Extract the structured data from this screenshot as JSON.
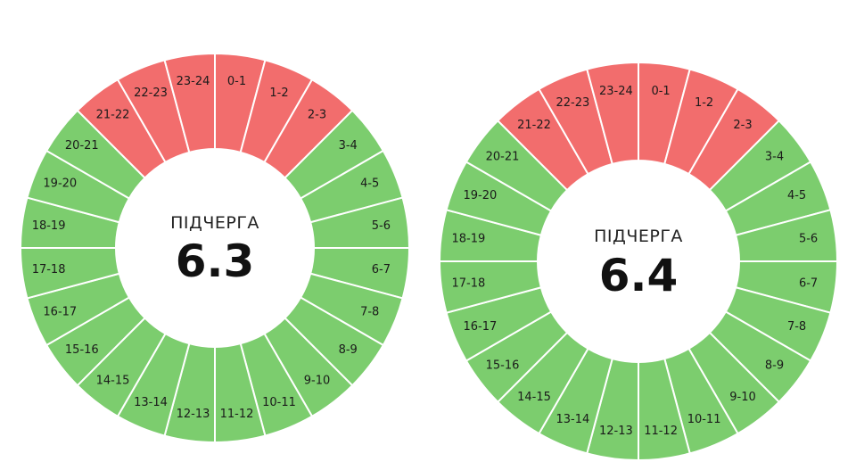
{
  "colors": {
    "on": "#7ccd6e",
    "off": "#f26d6d"
  },
  "chart_data": [
    {
      "type": "pie",
      "title": "ПІДЧЕРГА",
      "value": "6.3",
      "categories": [
        "0-1",
        "1-2",
        "2-3",
        "3-4",
        "4-5",
        "5-6",
        "6-7",
        "7-8",
        "8-9",
        "9-10",
        "10-11",
        "11-12",
        "12-13",
        "13-14",
        "14-15",
        "15-16",
        "16-17",
        "17-18",
        "18-19",
        "19-20",
        "20-21",
        "21-22",
        "22-23",
        "23-24"
      ],
      "status": [
        "off",
        "off",
        "off",
        "on",
        "on",
        "on",
        "on",
        "on",
        "on",
        "on",
        "on",
        "on",
        "on",
        "on",
        "on",
        "on",
        "on",
        "on",
        "on",
        "on",
        "on",
        "off",
        "off",
        "off"
      ]
    },
    {
      "type": "pie",
      "title": "ПІДЧЕРГА",
      "value": "6.4",
      "categories": [
        "0-1",
        "1-2",
        "2-3",
        "3-4",
        "4-5",
        "5-6",
        "6-7",
        "7-8",
        "8-9",
        "9-10",
        "10-11",
        "11-12",
        "12-13",
        "13-14",
        "14-15",
        "15-16",
        "16-17",
        "17-18",
        "18-19",
        "19-20",
        "20-21",
        "21-22",
        "22-23",
        "23-24"
      ],
      "status": [
        "off",
        "off",
        "off",
        "on",
        "on",
        "on",
        "on",
        "on",
        "on",
        "on",
        "on",
        "on",
        "on",
        "on",
        "on",
        "on",
        "on",
        "on",
        "on",
        "on",
        "on",
        "off",
        "off",
        "off"
      ]
    }
  ]
}
